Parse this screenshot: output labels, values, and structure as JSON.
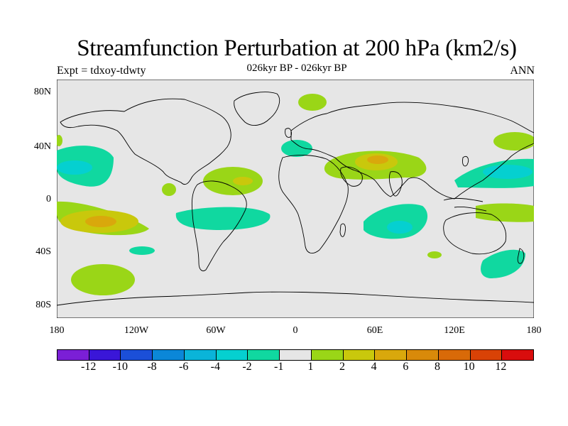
{
  "title": "Streamfunction Perturbation at 200 hPa (km2/s)",
  "experiment": "Expt = tdxoy-tdwty",
  "period": "026kyr BP - 026kyr BP",
  "season": "ANN",
  "lat_ticks": [
    "80N",
    "40N",
    "0",
    "40S",
    "80S"
  ],
  "lon_ticks": [
    "180",
    "120W",
    "60W",
    "0",
    "60E",
    "120E",
    "180"
  ],
  "colorbar": {
    "colors": [
      "#7b1fd6",
      "#3a16d8",
      "#1b4fd8",
      "#0b87d8",
      "#0ab4d9",
      "#05d0d0",
      "#10d8a0",
      "#e6e6e6",
      "#9ad617",
      "#c9c80c",
      "#d9a80c",
      "#d98a0a",
      "#d96a08",
      "#d94206",
      "#d90d0d"
    ],
    "labels": [
      "-12",
      "-10",
      "-8",
      "-6",
      "-4",
      "-2",
      "-1",
      "1",
      "2",
      "4",
      "6",
      "8",
      "10",
      "12"
    ]
  },
  "colors": {
    "background": "#e6e6e6",
    "green_pos": "#9ad617",
    "yellow_pos": "#c9c80c",
    "orange_pos": "#d9a80c",
    "teal_neg": "#10d8a0",
    "cyan_neg": "#05d0d0"
  }
}
